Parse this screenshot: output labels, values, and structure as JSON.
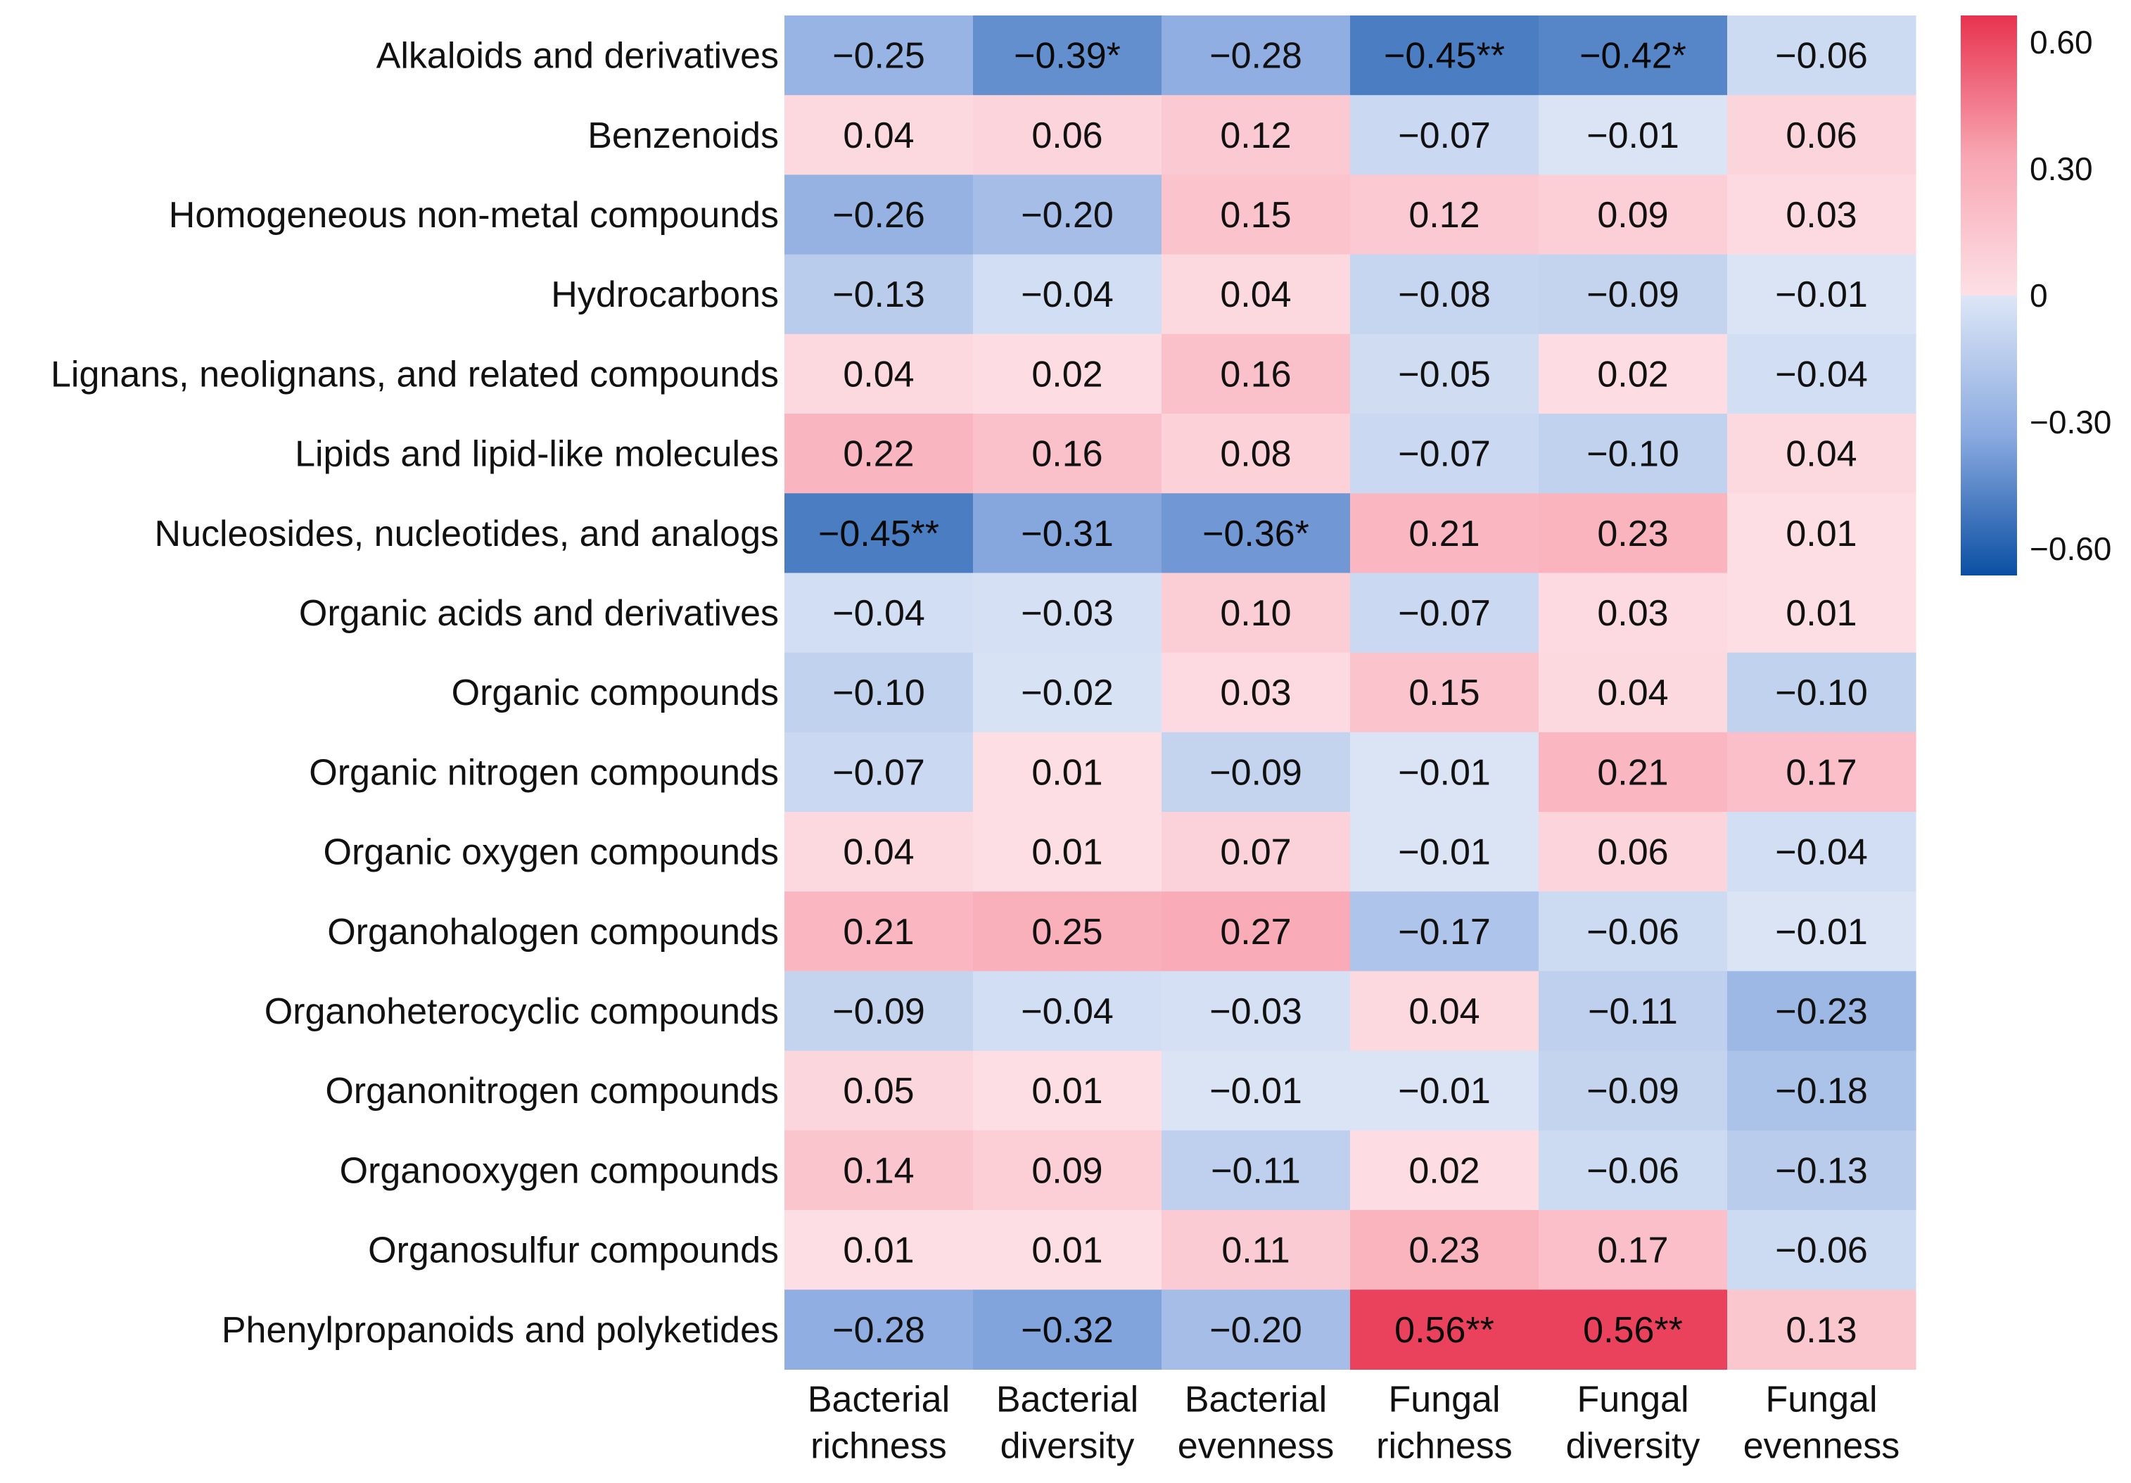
{
  "chart_data": {
    "type": "heatmap",
    "title": "",
    "rows": [
      "Alkaloids and derivatives",
      "Benzenoids",
      "Homogeneous non-metal compounds",
      "Hydrocarbons",
      "Lignans, neolignans, and related compounds",
      "Lipids and lipid-like molecules",
      "Nucleosides, nucleotides, and analogs",
      "Organic acids and derivatives",
      "Organic compounds",
      "Organic nitrogen compounds",
      "Organic oxygen compounds",
      "Organohalogen compounds",
      "Organoheterocyclic compounds",
      "Organonitrogen compounds",
      "Organooxygen compounds",
      "Organosulfur compounds",
      "Phenylpropanoids and polyketides"
    ],
    "columns": [
      [
        "Bacterial",
        "richness"
      ],
      [
        "Bacterial",
        "diversity"
      ],
      [
        "Bacterial",
        "evenness"
      ],
      [
        "Fungal",
        "richness"
      ],
      [
        "Fungal",
        "diversity"
      ],
      [
        "Fungal",
        "evenness"
      ]
    ],
    "values": [
      [
        -0.25,
        -0.39,
        -0.28,
        -0.45,
        -0.42,
        -0.06
      ],
      [
        0.04,
        0.06,
        0.12,
        -0.07,
        -0.01,
        0.06
      ],
      [
        -0.26,
        -0.2,
        0.15,
        0.12,
        0.09,
        0.03
      ],
      [
        -0.13,
        -0.04,
        0.04,
        -0.08,
        -0.09,
        -0.01
      ],
      [
        0.04,
        0.02,
        0.16,
        -0.05,
        0.02,
        -0.04
      ],
      [
        0.22,
        0.16,
        0.08,
        -0.07,
        -0.1,
        0.04
      ],
      [
        -0.45,
        -0.31,
        -0.36,
        0.21,
        0.23,
        0.01
      ],
      [
        -0.04,
        -0.03,
        0.1,
        -0.07,
        0.03,
        0.01
      ],
      [
        -0.1,
        -0.02,
        0.03,
        0.15,
        0.04,
        -0.1
      ],
      [
        -0.07,
        0.01,
        -0.09,
        -0.01,
        0.21,
        0.17
      ],
      [
        0.04,
        0.01,
        0.07,
        -0.01,
        0.06,
        -0.04
      ],
      [
        0.21,
        0.25,
        0.27,
        -0.17,
        -0.06,
        -0.01
      ],
      [
        -0.09,
        -0.04,
        -0.03,
        0.04,
        -0.11,
        -0.23
      ],
      [
        0.05,
        0.01,
        -0.01,
        -0.01,
        -0.09,
        -0.18
      ],
      [
        0.14,
        0.09,
        -0.11,
        0.02,
        -0.06,
        -0.13
      ],
      [
        0.01,
        0.01,
        0.11,
        0.23,
        0.17,
        -0.06
      ],
      [
        -0.28,
        -0.32,
        -0.2,
        0.56,
        0.56,
        0.13
      ]
    ],
    "labels": [
      [
        "−0.25",
        "−0.39*",
        "−0.28",
        "−0.45**",
        "−0.42*",
        "−0.06"
      ],
      [
        "0.04",
        "0.06",
        "0.12",
        "−0.07",
        "−0.01",
        "0.06"
      ],
      [
        "−0.26",
        "−0.20",
        "0.15",
        "0.12",
        "0.09",
        "0.03"
      ],
      [
        "−0.13",
        "−0.04",
        "0.04",
        "−0.08",
        "−0.09",
        "−0.01"
      ],
      [
        "0.04",
        "0.02",
        "0.16",
        "−0.05",
        "0.02",
        "−0.04"
      ],
      [
        "0.22",
        "0.16",
        "0.08",
        "−0.07",
        "−0.10",
        "0.04"
      ],
      [
        "−0.45**",
        "−0.31",
        "−0.36*",
        "0.21",
        "0.23",
        "0.01"
      ],
      [
        "−0.04",
        "−0.03",
        "0.10",
        "−0.07",
        "0.03",
        "0.01"
      ],
      [
        "−0.10",
        "−0.02",
        "0.03",
        "0.15",
        "0.04",
        "−0.10"
      ],
      [
        "−0.07",
        "0.01",
        "−0.09",
        "−0.01",
        "0.21",
        "0.17"
      ],
      [
        "0.04",
        "0.01",
        "0.07",
        "−0.01",
        "0.06",
        "−0.04"
      ],
      [
        "0.21",
        "0.25",
        "0.27",
        "−0.17",
        "−0.06",
        "−0.01"
      ],
      [
        "−0.09",
        "−0.04",
        "−0.03",
        "0.04",
        "−0.11",
        "−0.23"
      ],
      [
        "0.05",
        "0.01",
        "−0.01",
        "−0.01",
        "−0.09",
        "−0.18"
      ],
      [
        "0.14",
        "0.09",
        "−0.11",
        "0.02",
        "−0.06",
        "−0.13"
      ],
      [
        "0.01",
        "0.01",
        "0.11",
        "0.23",
        "0.17",
        "−0.06"
      ],
      [
        "−0.28",
        "−0.32",
        "−0.20",
        "0.56**",
        "0.56**",
        "0.13"
      ]
    ],
    "colorbar": {
      "range": [
        -0.6,
        0.6
      ],
      "ticks": [
        0.6,
        0.3,
        0,
        -0.3,
        -0.6
      ],
      "tick_labels": [
        "0.60",
        "0.30",
        "0",
        "−0.30",
        "−0.60"
      ],
      "colors": {
        "pos_max": "#e8334f",
        "pos_mid": "#f8a6b2",
        "pos_min": "#fde0e6",
        "neg_min": "#dde6f6",
        "neg_mid": "#8aaae0",
        "neg_max": "#0b4fa3"
      }
    }
  }
}
